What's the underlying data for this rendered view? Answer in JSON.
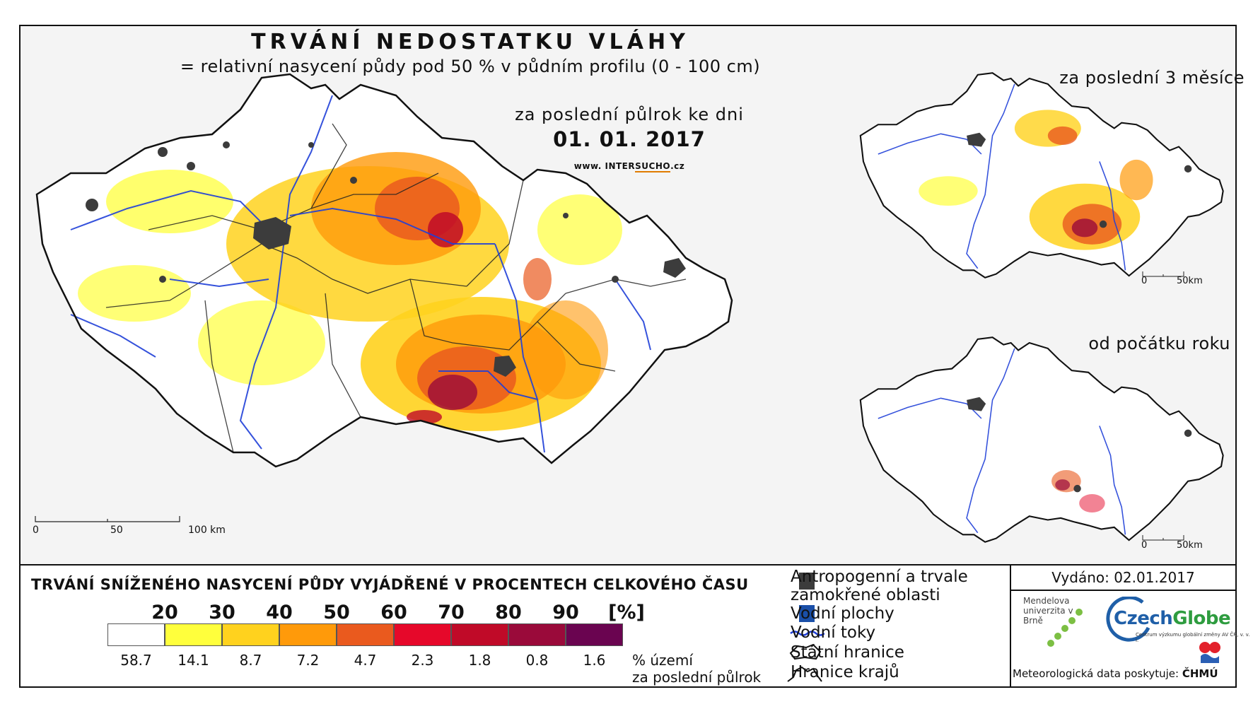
{
  "header": {
    "title": "TRVÁNÍ NEDOSTATKU VLÁHY",
    "subtitle": "= relativní nasycení půdy pod 50 % v půdním profilu (0 - 100 cm)",
    "period": "za poslední půlrok ke dni",
    "date": "01. 01. 2017",
    "web_prefix": "www. INTER",
    "web_highlight": "SUCHO",
    "web_suffix": ".cz"
  },
  "main_map": {
    "scale_labels": [
      "0",
      "50",
      "100 km"
    ]
  },
  "insets": [
    {
      "title": "za poslední 3 měsíce",
      "scale_labels": [
        "0",
        "50km"
      ]
    },
    {
      "title": "od počátku roku",
      "scale_labels": [
        "0",
        "50km"
      ]
    }
  ],
  "legend": {
    "title": "TRVÁNÍ SNÍŽENÉHO NASYCENÍ PŮDY VYJÁDŘENÉ V PROCENTECH CELKOVÉHO ČASU",
    "thresholds": [
      "20",
      "30",
      "40",
      "50",
      "60",
      "70",
      "80",
      "90",
      "[%]"
    ],
    "classes": [
      {
        "color": "#ffffff",
        "share": "58.7"
      },
      {
        "color": "#ffff3c",
        "share": "14.1"
      },
      {
        "color": "#ffd21e",
        "share": "8.7"
      },
      {
        "color": "#ff9a0a",
        "share": "7.2"
      },
      {
        "color": "#ea5a1e",
        "share": "4.7"
      },
      {
        "color": "#e6082a",
        "share": "2.3"
      },
      {
        "color": "#c00a28",
        "share": "1.8"
      },
      {
        "color": "#9a0a3a",
        "share": "0.8"
      },
      {
        "color": "#6a0450",
        "share": "1.6"
      }
    ],
    "share_unit_line1": "% území",
    "share_unit_line2": "za poslední půlrok"
  },
  "symbols": {
    "anthropogenic": "Antropogenní a trvale zamokřené oblasti",
    "water_bodies": "Vodní plochy",
    "rivers": "Vodní toky",
    "state_border": "Státní hranice",
    "region_border": "Hranice krajů",
    "colors": {
      "anthropogenic": "#3c3c3c",
      "water": "#1a4fa8",
      "river": "#1f3fd8"
    }
  },
  "credits": {
    "issued": "Vydáno: 02.01.2017",
    "mendel": "Mendelova univerzita v Brně",
    "czechglobe_a": "Czech",
    "czechglobe_b": "Globe",
    "czechglobe_sub": "Centrum výzkumu globální změny AV ČR, v. v. i.",
    "meteo": "Meteorologická data poskytuje:",
    "chmu": "ČHMÚ"
  }
}
